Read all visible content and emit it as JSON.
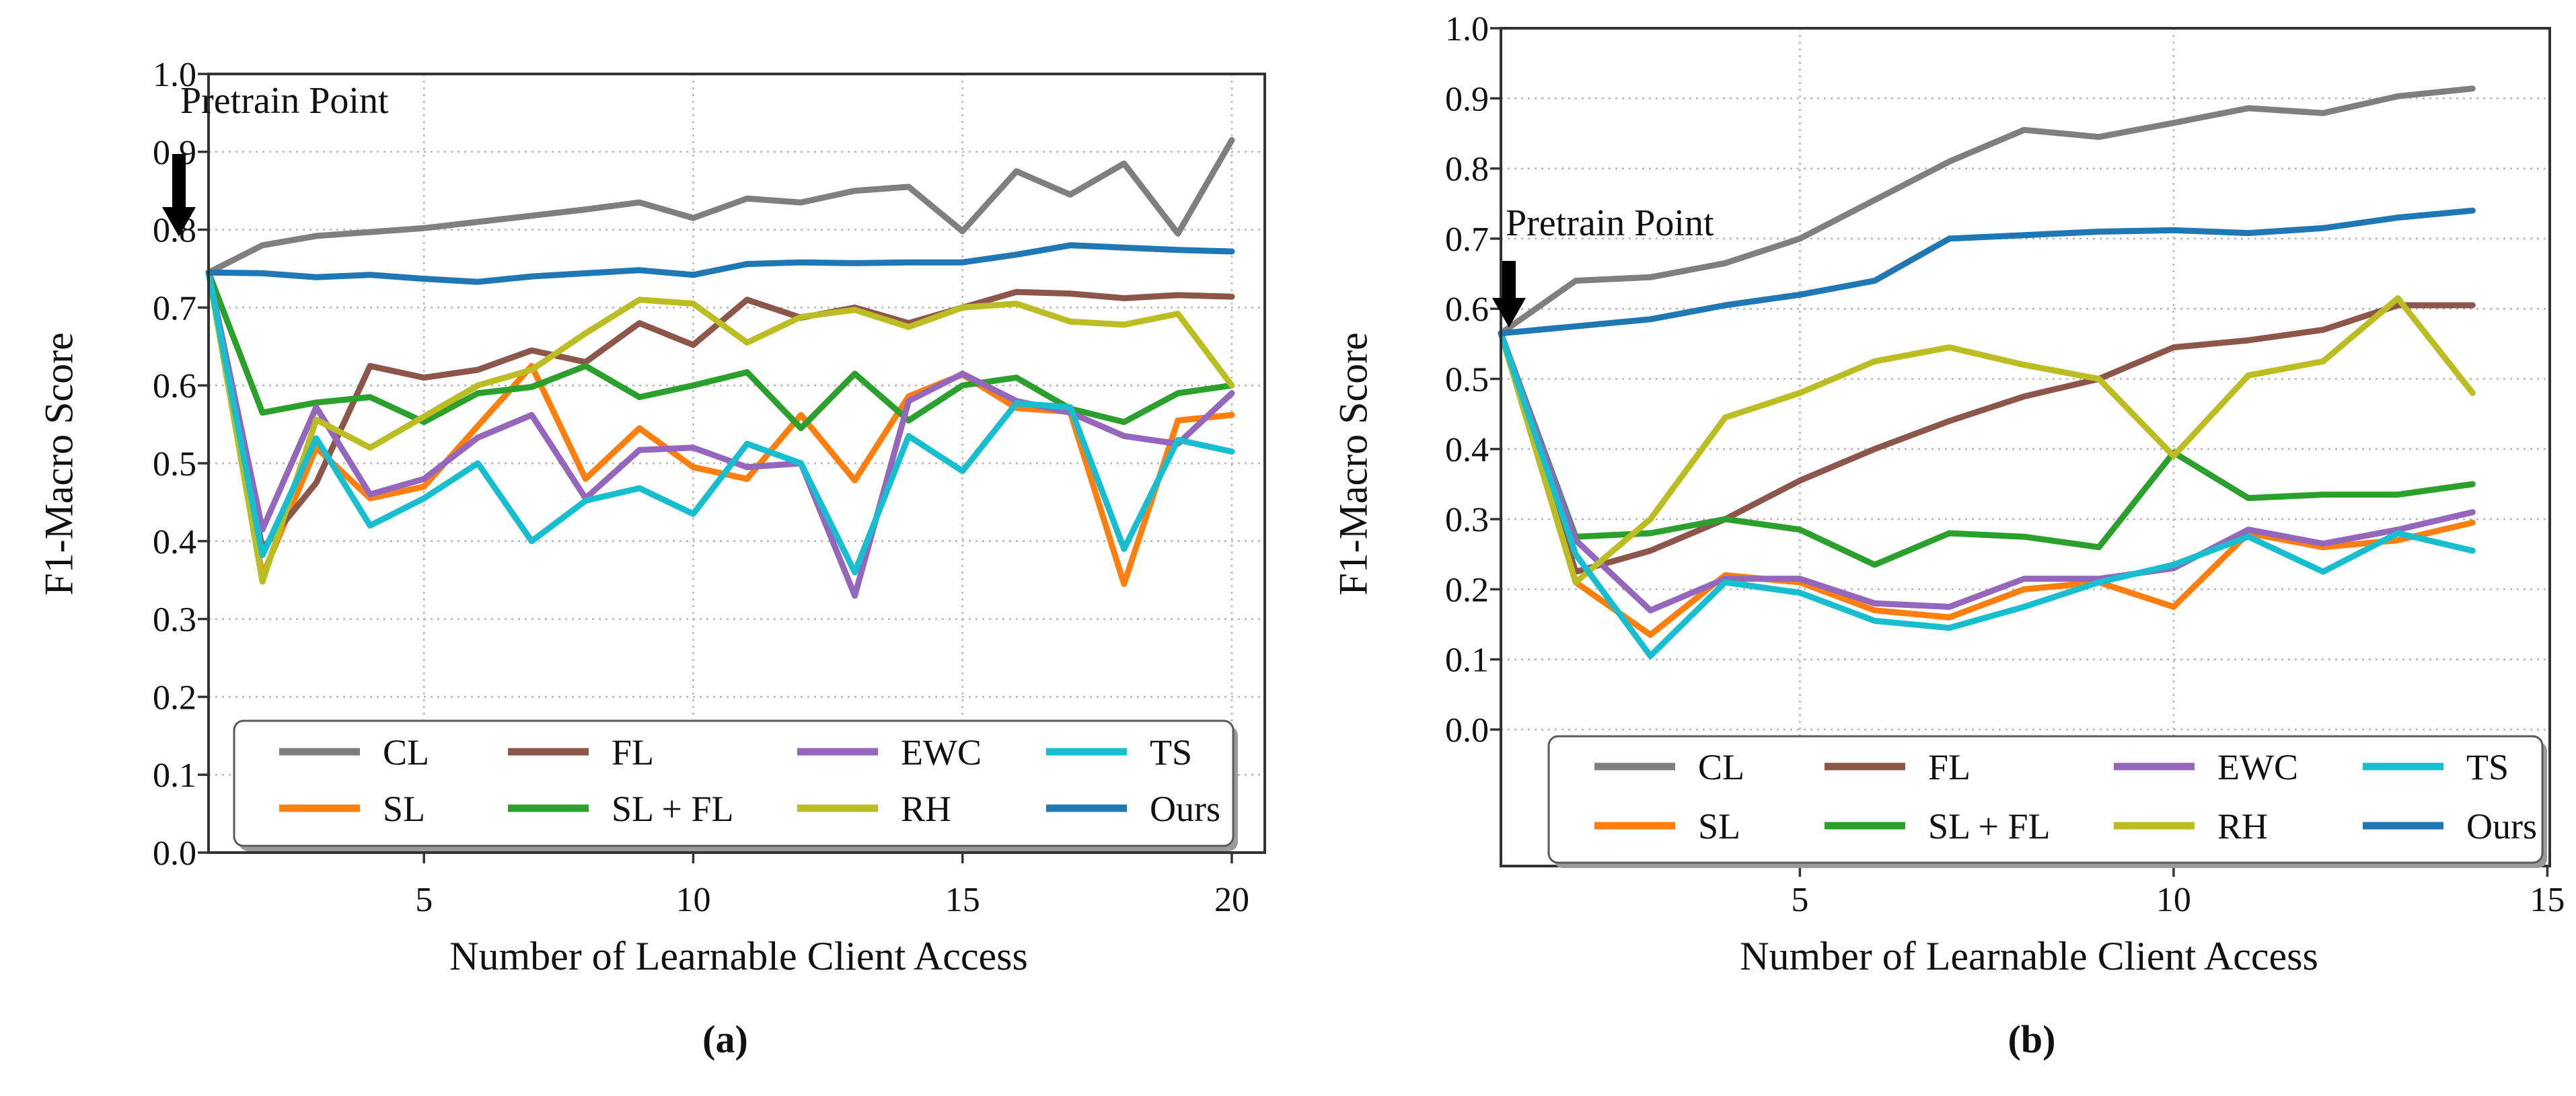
{
  "figure": {
    "background": "#ffffff",
    "annotation_label": "Pretrain Point",
    "axis_color": "#333333",
    "grid_color": "#b5b5b5",
    "legend_border_color": "#5a5a5a",
    "legend_shadow_color": "#9a9a9a"
  },
  "legend": {
    "rows": [
      [
        "CL",
        "FL",
        "EWC",
        "TS"
      ],
      [
        "SL",
        "SL + FL",
        "RH",
        "Ours"
      ]
    ]
  },
  "chart_data": [
    {
      "id": "a",
      "type": "line",
      "caption": "(a)",
      "xlabel": "Number of Learnable Client Access",
      "ylabel": "F1-Macro Score",
      "annotation": {
        "text": "Pretrain Point"
      },
      "x": [
        1,
        2,
        3,
        4,
        5,
        6,
        7,
        8,
        9,
        10,
        11,
        12,
        13,
        14,
        15,
        16,
        17,
        18,
        19,
        20
      ],
      "xlim": [
        1,
        20.6
      ],
      "ylim": [
        0.0,
        1.0
      ],
      "x_ticks": [
        5,
        10,
        15,
        20
      ],
      "y_tick_labels": [
        "0.0",
        "0.1",
        "0.2",
        "0.3",
        "0.4",
        "0.5",
        "0.6",
        "0.7",
        "0.8",
        "0.9",
        "1.0"
      ],
      "grid": true,
      "legend_position": "lower center",
      "series": [
        {
          "name": "CL",
          "color": "#7f7f7f",
          "values": [
            0.745,
            0.78,
            0.792,
            0.797,
            0.802,
            0.81,
            0.818,
            0.826,
            0.835,
            0.815,
            0.84,
            0.835,
            0.85,
            0.855,
            0.798,
            0.875,
            0.845,
            0.885,
            0.795,
            0.915
          ]
        },
        {
          "name": "SL",
          "color": "#ff7f0e",
          "values": [
            0.745,
            0.355,
            0.52,
            0.455,
            0.47,
            0.548,
            0.625,
            0.48,
            0.545,
            0.495,
            0.48,
            0.562,
            0.478,
            0.586,
            0.614,
            0.571,
            0.566,
            0.345,
            0.555,
            0.562
          ]
        },
        {
          "name": "FL",
          "color": "#8c564b",
          "values": [
            0.745,
            0.39,
            0.475,
            0.625,
            0.61,
            0.62,
            0.645,
            0.63,
            0.68,
            0.652,
            0.71,
            0.687,
            0.7,
            0.68,
            0.7,
            0.72,
            0.718,
            0.712,
            0.716,
            0.714
          ]
        },
        {
          "name": "SL + FL",
          "color": "#2ca02c",
          "values": [
            0.745,
            0.565,
            0.578,
            0.585,
            0.553,
            0.59,
            0.598,
            0.625,
            0.585,
            0.6,
            0.617,
            0.545,
            0.615,
            0.555,
            0.6,
            0.61,
            0.57,
            0.553,
            0.59,
            0.6
          ]
        },
        {
          "name": "EWC",
          "color": "#9467bd",
          "values": [
            0.745,
            0.415,
            0.572,
            0.46,
            0.48,
            0.533,
            0.562,
            0.455,
            0.517,
            0.52,
            0.495,
            0.5,
            0.33,
            0.58,
            0.615,
            0.58,
            0.565,
            0.535,
            0.525,
            0.59
          ]
        },
        {
          "name": "RH",
          "color": "#bcbd22",
          "values": [
            0.745,
            0.348,
            0.556,
            0.52,
            0.56,
            0.6,
            0.62,
            0.667,
            0.71,
            0.705,
            0.655,
            0.688,
            0.697,
            0.675,
            0.7,
            0.705,
            0.682,
            0.678,
            0.692,
            0.6
          ]
        },
        {
          "name": "TS",
          "color": "#17becf",
          "values": [
            0.745,
            0.382,
            0.532,
            0.42,
            0.455,
            0.5,
            0.4,
            0.452,
            0.468,
            0.435,
            0.525,
            0.5,
            0.36,
            0.535,
            0.49,
            0.577,
            0.572,
            0.39,
            0.53,
            0.515
          ]
        },
        {
          "name": "Ours",
          "color": "#1f77b4",
          "values": [
            0.745,
            0.744,
            0.739,
            0.742,
            0.737,
            0.733,
            0.74,
            0.744,
            0.748,
            0.742,
            0.756,
            0.758,
            0.757,
            0.758,
            0.758,
            0.768,
            0.78,
            0.777,
            0.774,
            0.772
          ]
        }
      ]
    },
    {
      "id": "b",
      "type": "line",
      "caption": "(b)",
      "xlabel": "Number of Learnable Client Access",
      "ylabel": "F1-Macro Score",
      "annotation": {
        "text": "Pretrain Point"
      },
      "x": [
        1,
        2,
        3,
        4,
        5,
        6,
        7,
        8,
        9,
        10,
        11,
        12,
        13,
        14
      ],
      "xlim": [
        1,
        15.03
      ],
      "ylim": [
        -0.21,
        1.0
      ],
      "x_ticks": [
        5,
        10,
        15
      ],
      "y_tick_labels": [
        "0.0",
        "0.1",
        "0.2",
        "0.3",
        "0.4",
        "0.5",
        "0.6",
        "0.7",
        "0.8",
        "0.9",
        "1.0"
      ],
      "grid": true,
      "legend_position": "lower center",
      "series": [
        {
          "name": "CL",
          "color": "#7f7f7f",
          "values": [
            0.565,
            0.64,
            0.645,
            0.665,
            0.7,
            0.755,
            0.81,
            0.855,
            0.845,
            0.865,
            0.886,
            0.879,
            0.903,
            0.914
          ]
        },
        {
          "name": "SL",
          "color": "#ff7f0e",
          "values": [
            0.565,
            0.21,
            0.135,
            0.22,
            0.21,
            0.17,
            0.16,
            0.2,
            0.21,
            0.175,
            0.28,
            0.26,
            0.27,
            0.295
          ]
        },
        {
          "name": "FL",
          "color": "#8c564b",
          "values": [
            0.565,
            0.225,
            0.255,
            0.3,
            0.355,
            0.4,
            0.44,
            0.475,
            0.5,
            0.545,
            0.555,
            0.57,
            0.605,
            0.605
          ]
        },
        {
          "name": "SL + FL",
          "color": "#2ca02c",
          "values": [
            0.565,
            0.275,
            0.28,
            0.3,
            0.285,
            0.235,
            0.28,
            0.275,
            0.26,
            0.395,
            0.33,
            0.335,
            0.335,
            0.35
          ]
        },
        {
          "name": "EWC",
          "color": "#9467bd",
          "values": [
            0.565,
            0.27,
            0.17,
            0.215,
            0.215,
            0.18,
            0.175,
            0.215,
            0.215,
            0.23,
            0.285,
            0.265,
            0.285,
            0.31
          ]
        },
        {
          "name": "RH",
          "color": "#bcbd22",
          "values": [
            0.565,
            0.21,
            0.3,
            0.445,
            0.48,
            0.525,
            0.545,
            0.52,
            0.5,
            0.39,
            0.505,
            0.525,
            0.615,
            0.48
          ]
        },
        {
          "name": "TS",
          "color": "#17becf",
          "values": [
            0.565,
            0.25,
            0.105,
            0.21,
            0.195,
            0.155,
            0.145,
            0.175,
            0.21,
            0.235,
            0.275,
            0.225,
            0.28,
            0.255
          ]
        },
        {
          "name": "Ours",
          "color": "#1f77b4",
          "values": [
            0.565,
            0.575,
            0.585,
            0.605,
            0.62,
            0.64,
            0.7,
            0.705,
            0.71,
            0.712,
            0.708,
            0.715,
            0.73,
            0.74
          ]
        }
      ]
    }
  ]
}
